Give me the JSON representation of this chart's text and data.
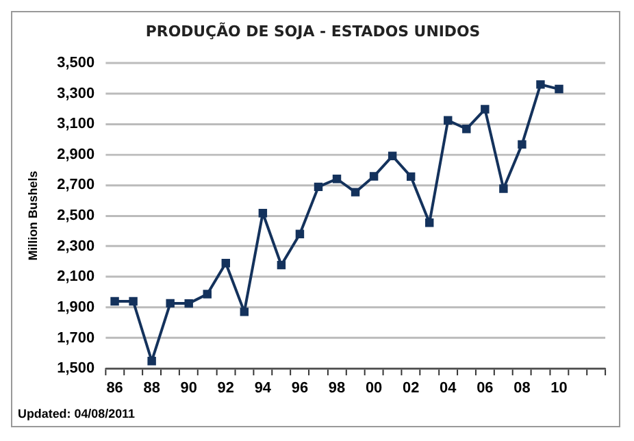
{
  "chart_data": {
    "type": "line",
    "title": "PRODUÇÃO DE SOJA - ESTADOS UNIDOS",
    "ylabel": "Million Bushels",
    "categories": [
      "86",
      null,
      "88",
      null,
      "90",
      null,
      "92",
      null,
      "94",
      null,
      "96",
      null,
      "98",
      null,
      "00",
      null,
      "02",
      null,
      "04",
      null,
      "06",
      null,
      "08",
      null,
      "10",
      null,
      null
    ],
    "series": [
      {
        "color": "#14325c",
        "values": [
          1940,
          1940,
          1549,
          1927,
          1926,
          1987,
          2190,
          1871,
          2517,
          2177,
          2380,
          2689,
          2741,
          2654,
          2758,
          2891,
          2756,
          2454,
          3124,
          3068,
          3197,
          2677,
          2967,
          3359,
          3329,
          null,
          null
        ]
      }
    ],
    "ylim": [
      1500,
      3500
    ],
    "yticks": [
      {
        "value": 1500,
        "label": "1,500"
      },
      {
        "value": 1700,
        "label": "1,700"
      },
      {
        "value": 1900,
        "label": "1,900"
      },
      {
        "value": 2100,
        "label": "2,100"
      },
      {
        "value": 2300,
        "label": "2,300"
      },
      {
        "value": 2500,
        "label": "2,500"
      },
      {
        "value": 2700,
        "label": "2,700"
      },
      {
        "value": 2900,
        "label": "2,900"
      },
      {
        "value": 3100,
        "label": "3,100"
      },
      {
        "value": 3300,
        "label": "3,300"
      },
      {
        "value": 3500,
        "label": "3,500"
      }
    ],
    "grid": "y",
    "legend": false,
    "marker": "square",
    "line_style": "solid",
    "annotations": [
      "Updated: 04/08/2011"
    ]
  }
}
